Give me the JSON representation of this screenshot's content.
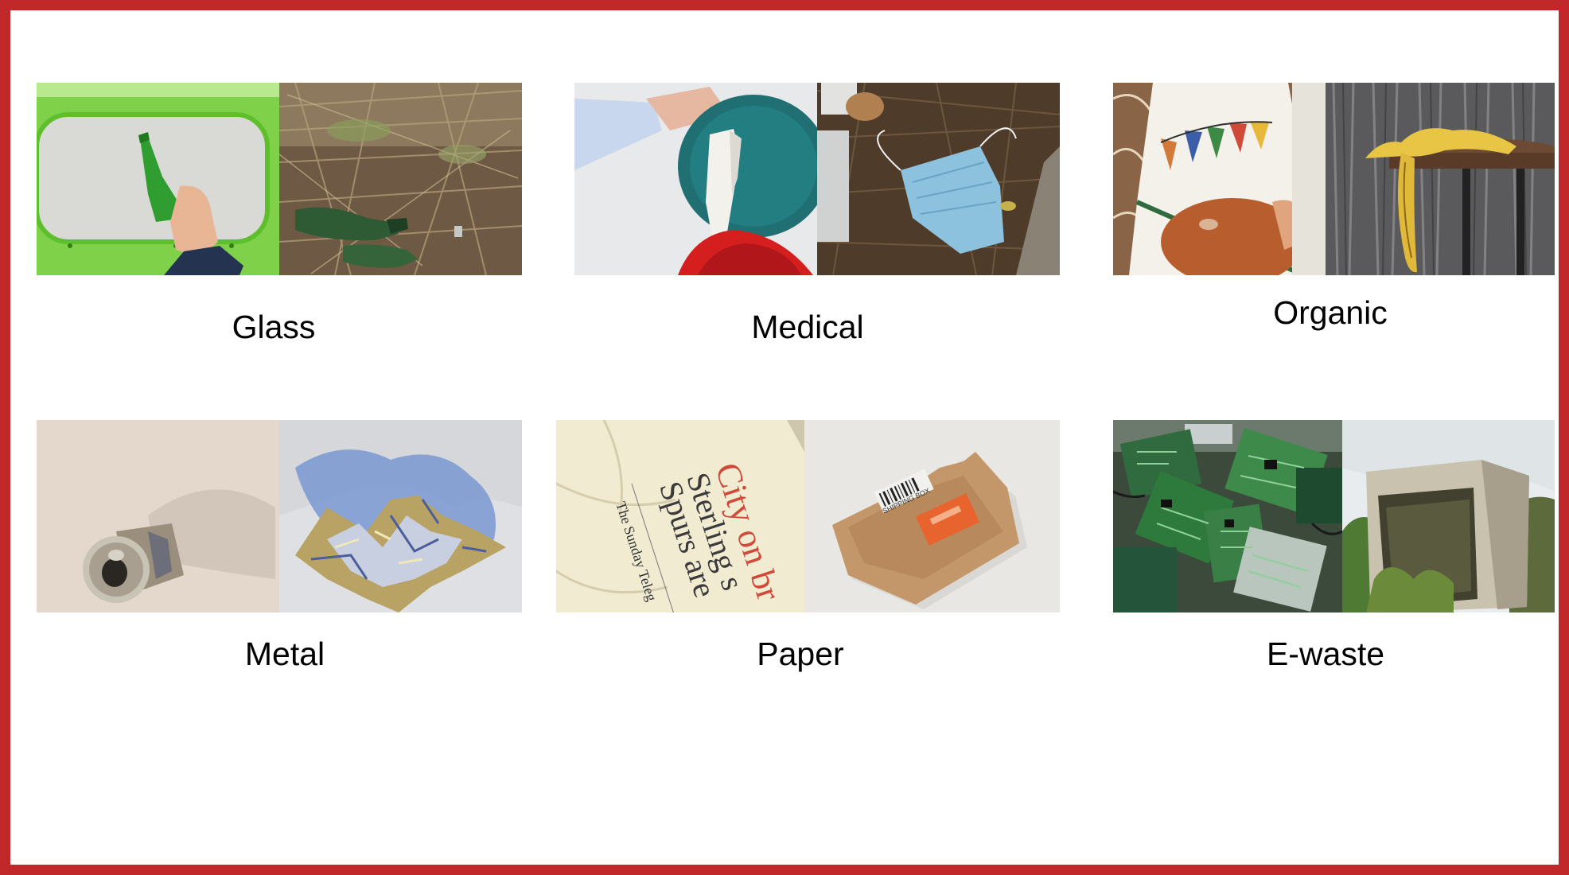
{
  "slide": {
    "border_color": "#c0282a",
    "categories": [
      {
        "label": "Glass"
      },
      {
        "label": "Medical"
      },
      {
        "label": "Organic"
      },
      {
        "label": "Metal"
      },
      {
        "label": "Paper"
      },
      {
        "label": "E-waste"
      }
    ],
    "paper_headline": "City on br",
    "paper_subhead": "Sterling s",
    "paper_subhead2": "Spurs are",
    "paper_masthead": "The Sunday Teleg",
    "box_label": "SHIPPING BOX"
  }
}
